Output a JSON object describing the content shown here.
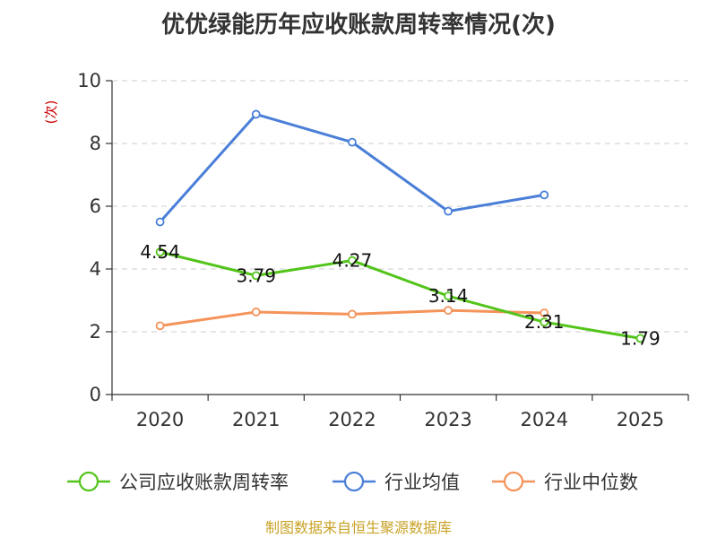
{
  "chart_data": {
    "type": "line",
    "title": "优优绿能历年应收账款周转率情况(次)",
    "ylabel": "(次)",
    "xlabel": "",
    "categories": [
      "2020",
      "2021",
      "2022",
      "2023",
      "2024",
      "2025"
    ],
    "ylim": [
      0,
      10
    ],
    "yticks": [
      0,
      2,
      4,
      6,
      8,
      10
    ],
    "grid": "horizontal-dashed",
    "legend_position": "bottom",
    "series": [
      {
        "name": "公司应收账款周转率",
        "color": "#52c41a",
        "values": [
          4.54,
          3.79,
          4.27,
          3.14,
          2.31,
          1.79
        ],
        "labels": [
          "4.54",
          "3.79",
          "4.27",
          "3.14",
          "2.31",
          "1.79"
        ]
      },
      {
        "name": "行业均值",
        "color": "#4a7fd8",
        "values": [
          5.5,
          8.93,
          8.04,
          5.84,
          6.36,
          null
        ]
      },
      {
        "name": "行业中位数",
        "color": "#f4935a",
        "values": [
          2.19,
          2.63,
          2.56,
          2.68,
          2.6,
          null
        ]
      }
    ],
    "source": "制图数据来自恒生聚源数据库",
    "source_color": "#c9a227",
    "ylabel_color": "#cc0000"
  }
}
